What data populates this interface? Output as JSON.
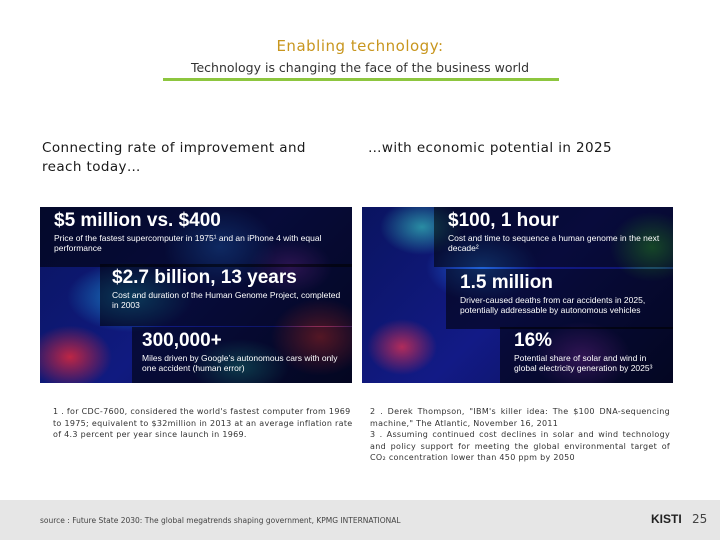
{
  "header": {
    "title": "Enabling technology:",
    "subtitle": "Technology is changing the face of the business world"
  },
  "left": {
    "heading": "Connecting rate of improvement and reach today…",
    "stats": [
      {
        "big": "$5 million vs. $400",
        "desc": "Price of the fastest supercomputer in 1975¹ and an iPhone 4 with equal performance"
      },
      {
        "big": "$2.7 billion, 13 years",
        "desc": "Cost and duration of the Human Genome Project, completed in 2003"
      },
      {
        "big": "300,000+",
        "desc": "Miles driven by Google’s autonomous cars with only one accident (human error)"
      }
    ],
    "note": "1 .  for CDC-7600, considered the world's fastest computer from 1969 to 1975; equivalent to $32million in 2013 at an average inflation rate of 4.3 percent per year since launch in 1969."
  },
  "right": {
    "heading": "…with economic potential in 2025",
    "stats": [
      {
        "big": "$100, 1 hour",
        "desc": "Cost and time to sequence a human genome in the next decade²"
      },
      {
        "big": "1.5 million",
        "desc": "Driver-caused deaths from car accidents in 2025, potentially addressable by autonomous vehicles"
      },
      {
        "big": "16%",
        "desc": "Potential share of solar and wind in global electricity generation by 2025³"
      }
    ],
    "note": "2 .  Derek Thompson, \"IBM's killer idea: The $100 DNA-sequencing machine,\" The Atlantic, November 16, 2011\n3 .  Assuming continued cost declines in solar and wind technology and policy support for meeting the global environmental target of CO₂ concentration lower than 450 ppm by 2050"
  },
  "footer": {
    "source": "source : Future State 2030: The global megatrends shaping government, KPMG INTERNATIONAL",
    "logo": "KISTI",
    "page": "25"
  }
}
